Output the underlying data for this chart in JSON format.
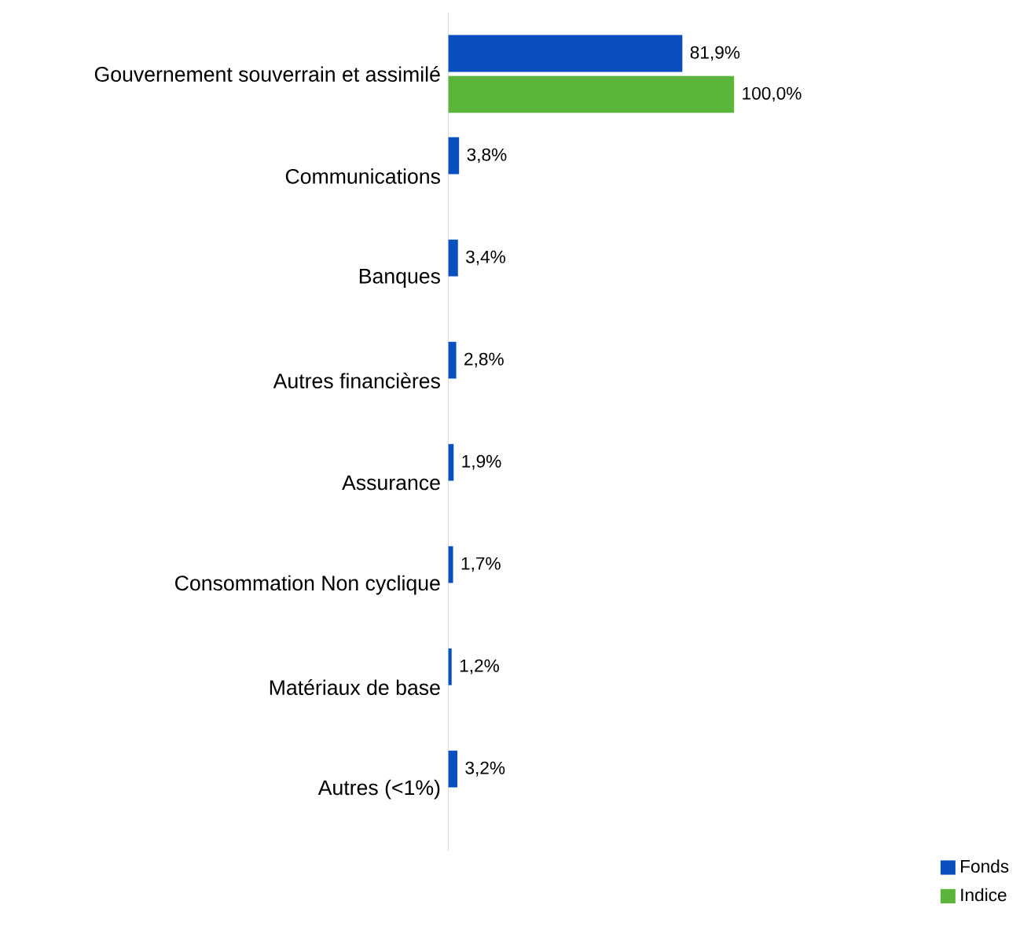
{
  "chart_data": {
    "type": "bar",
    "orientation": "horizontal",
    "categories": [
      "Gouvernement souverrain et assimilé",
      "Communications",
      "Banques",
      "Autres financières",
      "Assurance",
      "Consommation Non cyclique",
      "Matériaux de base",
      "Autres (<1%)"
    ],
    "series": [
      {
        "name": "Fonds",
        "color": "#0a4fbf",
        "values": [
          81.9,
          3.8,
          3.4,
          2.8,
          1.9,
          1.7,
          1.2,
          3.2
        ],
        "value_labels": [
          "81,9%",
          "3,8%",
          "3,4%",
          "2,8%",
          "1,9%",
          "1,7%",
          "1,2%",
          "3,2%"
        ]
      },
      {
        "name": "Indice",
        "color": "#5bb53b",
        "values": [
          100.0,
          null,
          null,
          null,
          null,
          null,
          null,
          null
        ],
        "value_labels": [
          "100,0%",
          null,
          null,
          null,
          null,
          null,
          null,
          null
        ]
      }
    ],
    "legend": "bottom right"
  }
}
